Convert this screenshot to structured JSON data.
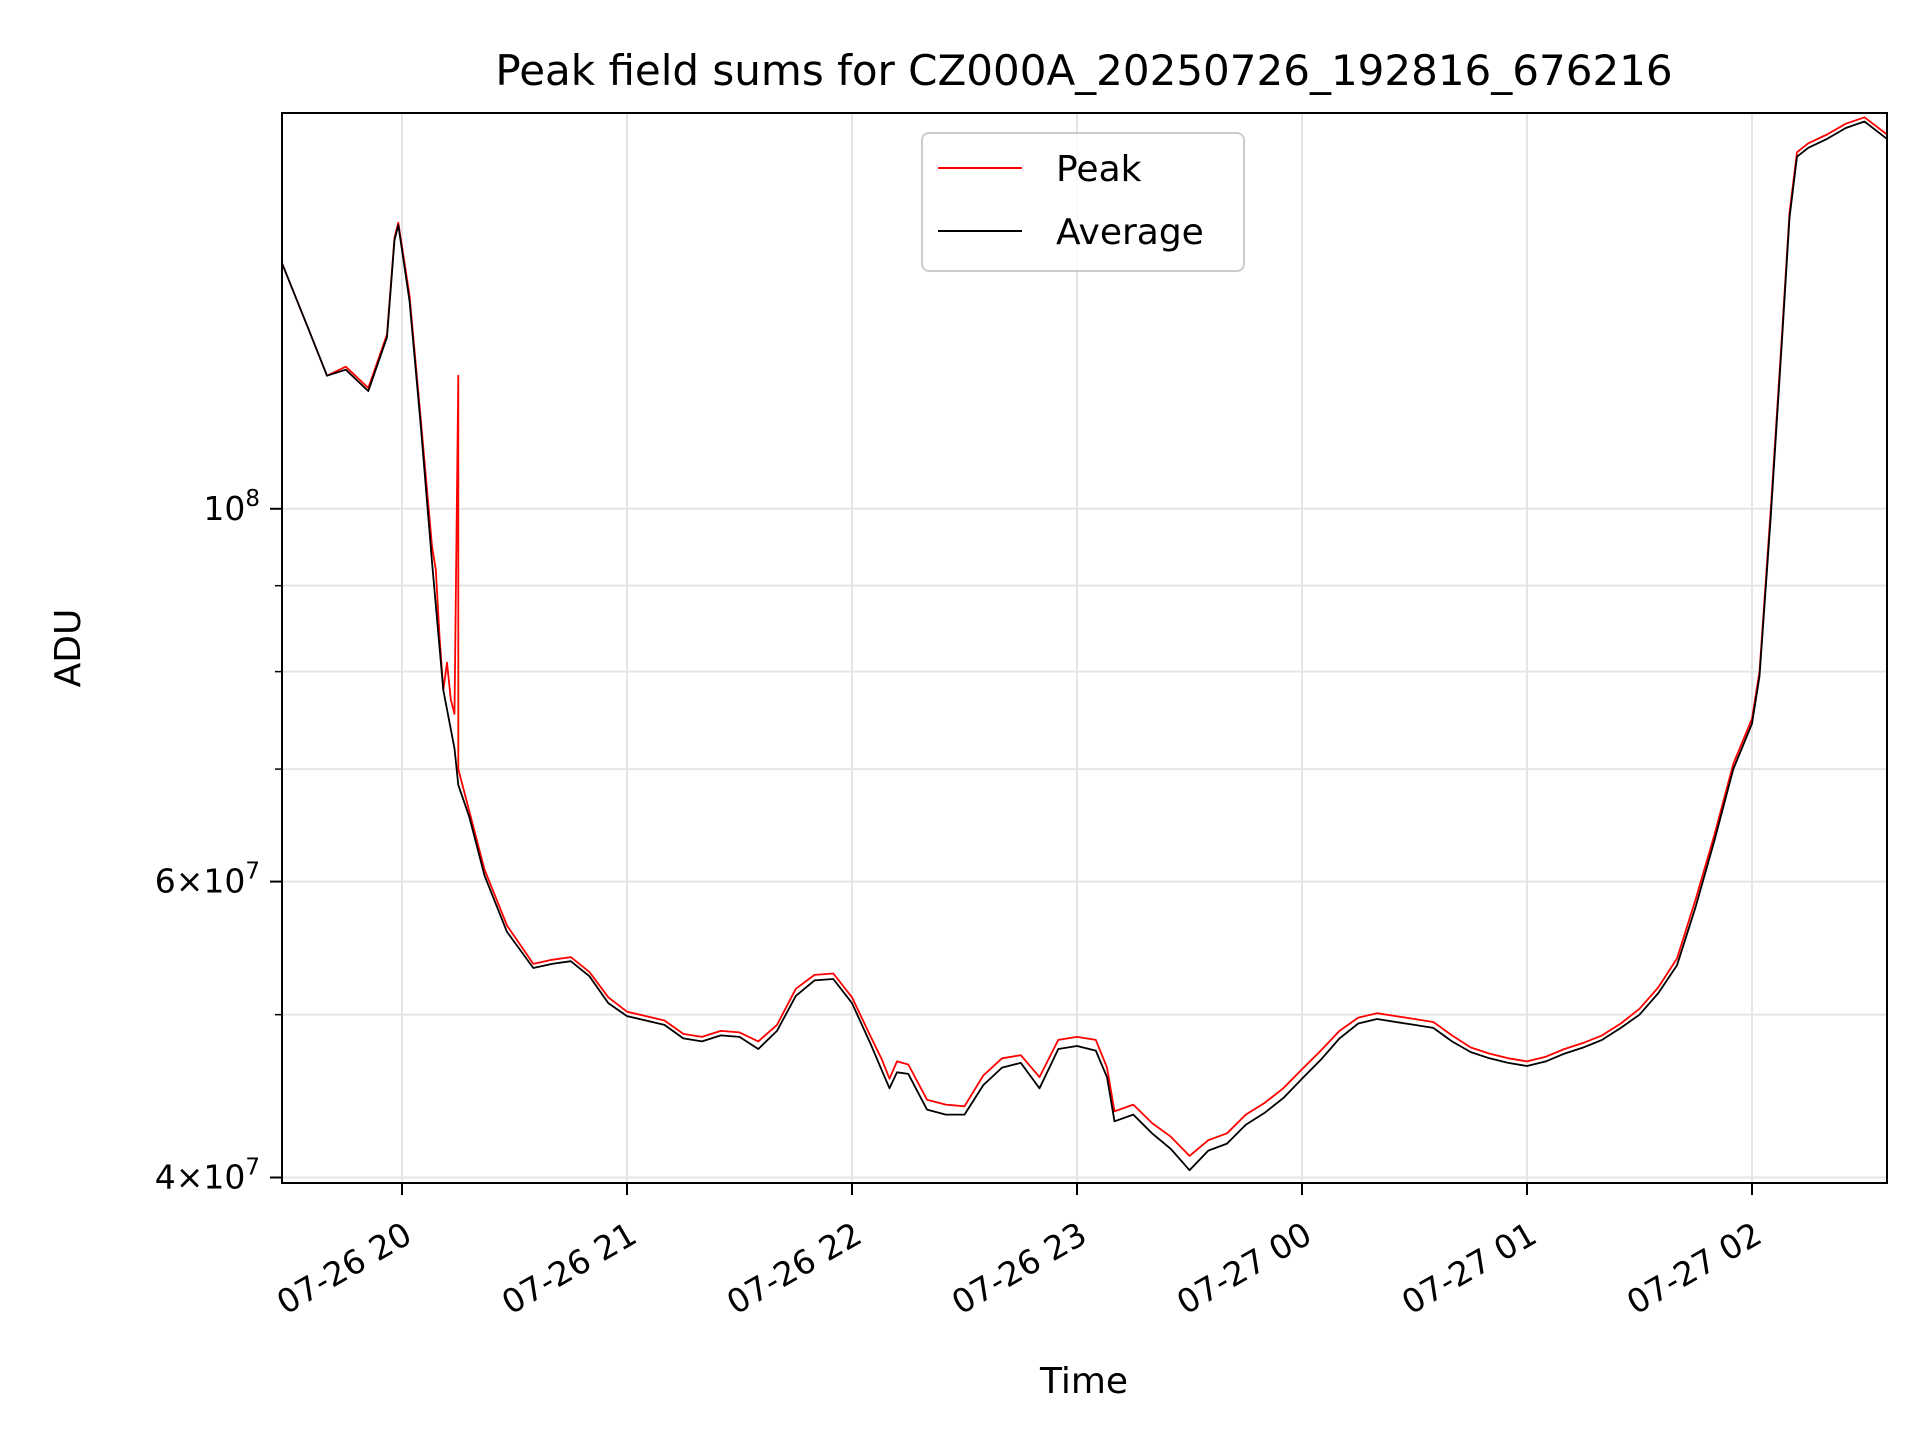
{
  "chart_data": {
    "type": "line",
    "title": "Peak field sums for CZ000A_20250726_192816_676216",
    "xlabel": "Time",
    "ylabel": "ADU",
    "yscale": "log",
    "ylim": [
      39700000,
      172000000
    ],
    "xlim": [
      "2025-07-26 19:28",
      "2025-07-27 02:36"
    ],
    "grid": true,
    "legend_position": "top-center",
    "x_ticks": [
      {
        "x": "2025-07-26 20:00",
        "label": "07-26 20"
      },
      {
        "x": "2025-07-26 21:00",
        "label": "07-26 21"
      },
      {
        "x": "2025-07-26 22:00",
        "label": "07-26 22"
      },
      {
        "x": "2025-07-26 23:00",
        "label": "07-26 23"
      },
      {
        "x": "2025-07-27 00:00",
        "label": "07-27 00"
      },
      {
        "x": "2025-07-27 01:00",
        "label": "07-27 01"
      },
      {
        "x": "2025-07-27 02:00",
        "label": "07-27 02"
      }
    ],
    "y_ticks": [
      {
        "value": 40000000,
        "mantissa": "4",
        "exponent": "7"
      },
      {
        "value": 60000000,
        "mantissa": "6",
        "exponent": "7"
      },
      {
        "value": 100000000,
        "mantissa": "",
        "exponent": "8"
      }
    ],
    "y_minor_ticks": [
      50000000,
      70000000,
      80000000,
      90000000
    ],
    "series": [
      {
        "name": "Peak",
        "color": "#ff0000",
        "points": [
          [
            "2025-07-26 19:28",
            140000000
          ],
          [
            "2025-07-26 19:35",
            128000000
          ],
          [
            "2025-07-26 19:40",
            120000000
          ],
          [
            "2025-07-26 19:45",
            121500000
          ],
          [
            "2025-07-26 19:51",
            118000000
          ],
          [
            "2025-07-26 19:56",
            127000000
          ],
          [
            "2025-07-26 19:58",
            145000000
          ],
          [
            "2025-07-26 19:59",
            148000000
          ],
          [
            "2025-07-26 20:02",
            134000000
          ],
          [
            "2025-07-26 20:05",
            113000000
          ],
          [
            "2025-07-26 20:08",
            95000000
          ],
          [
            "2025-07-26 20:09",
            92000000
          ],
          [
            "2025-07-26 20:10",
            84000000
          ],
          [
            "2025-07-26 20:11",
            78000000
          ],
          [
            "2025-07-26 20:12",
            81000000
          ],
          [
            "2025-07-26 20:13",
            77000000
          ],
          [
            "2025-07-26 20:14",
            75500000
          ],
          [
            "2025-07-26 20:15",
            120000000
          ],
          [
            "2025-07-26 20:15",
            70000000
          ],
          [
            "2025-07-26 20:18",
            66000000
          ],
          [
            "2025-07-26 20:22",
            61000000
          ],
          [
            "2025-07-26 20:28",
            56500000
          ],
          [
            "2025-07-26 20:35",
            53600000
          ],
          [
            "2025-07-26 20:40",
            53900000
          ],
          [
            "2025-07-26 20:45",
            54100000
          ],
          [
            "2025-07-26 20:50",
            53000000
          ],
          [
            "2025-07-26 20:55",
            51200000
          ],
          [
            "2025-07-26 21:00",
            50200000
          ],
          [
            "2025-07-26 21:10",
            49600000
          ],
          [
            "2025-07-26 21:15",
            48700000
          ],
          [
            "2025-07-26 21:20",
            48500000
          ],
          [
            "2025-07-26 21:25",
            48900000
          ],
          [
            "2025-07-26 21:30",
            48800000
          ],
          [
            "2025-07-26 21:35",
            48200000
          ],
          [
            "2025-07-26 21:40",
            49300000
          ],
          [
            "2025-07-26 21:45",
            51800000
          ],
          [
            "2025-07-26 21:50",
            52800000
          ],
          [
            "2025-07-26 21:55",
            52900000
          ],
          [
            "2025-07-26 22:00",
            51200000
          ],
          [
            "2025-07-26 22:05",
            48500000
          ],
          [
            "2025-07-26 22:08",
            47000000
          ],
          [
            "2025-07-26 22:10",
            45800000
          ],
          [
            "2025-07-26 22:12",
            46900000
          ],
          [
            "2025-07-26 22:15",
            46700000
          ],
          [
            "2025-07-26 22:20",
            44500000
          ],
          [
            "2025-07-26 22:25",
            44200000
          ],
          [
            "2025-07-26 22:30",
            44100000
          ],
          [
            "2025-07-26 22:35",
            46000000
          ],
          [
            "2025-07-26 22:40",
            47100000
          ],
          [
            "2025-07-26 22:45",
            47300000
          ],
          [
            "2025-07-26 22:50",
            45900000
          ],
          [
            "2025-07-26 22:55",
            48300000
          ],
          [
            "2025-07-26 23:00",
            48500000
          ],
          [
            "2025-07-26 23:05",
            48300000
          ],
          [
            "2025-07-26 23:08",
            46500000
          ],
          [
            "2025-07-26 23:10",
            43800000
          ],
          [
            "2025-07-26 23:15",
            44200000
          ],
          [
            "2025-07-26 23:20",
            43100000
          ],
          [
            "2025-07-26 23:25",
            42300000
          ],
          [
            "2025-07-26 23:30",
            41200000
          ],
          [
            "2025-07-26 23:35",
            42100000
          ],
          [
            "2025-07-26 23:40",
            42500000
          ],
          [
            "2025-07-26 23:45",
            43600000
          ],
          [
            "2025-07-26 23:50",
            44300000
          ],
          [
            "2025-07-26 23:55",
            45200000
          ],
          [
            "2025-07-27 00:00",
            46400000
          ],
          [
            "2025-07-27 00:05",
            47600000
          ],
          [
            "2025-07-27 00:10",
            48900000
          ],
          [
            "2025-07-27 00:15",
            49800000
          ],
          [
            "2025-07-27 00:20",
            50100000
          ],
          [
            "2025-07-27 00:25",
            49900000
          ],
          [
            "2025-07-27 00:30",
            49700000
          ],
          [
            "2025-07-27 00:35",
            49500000
          ],
          [
            "2025-07-27 00:40",
            48600000
          ],
          [
            "2025-07-27 00:45",
            47800000
          ],
          [
            "2025-07-27 00:50",
            47400000
          ],
          [
            "2025-07-27 00:55",
            47100000
          ],
          [
            "2025-07-27 01:00",
            46900000
          ],
          [
            "2025-07-27 01:05",
            47200000
          ],
          [
            "2025-07-27 01:10",
            47700000
          ],
          [
            "2025-07-27 01:15",
            48100000
          ],
          [
            "2025-07-27 01:20",
            48600000
          ],
          [
            "2025-07-27 01:25",
            49400000
          ],
          [
            "2025-07-27 01:30",
            50400000
          ],
          [
            "2025-07-27 01:35",
            51900000
          ],
          [
            "2025-07-27 01:40",
            54000000
          ],
          [
            "2025-07-27 01:45",
            58600000
          ],
          [
            "2025-07-27 01:50",
            64000000
          ],
          [
            "2025-07-27 01:55",
            70500000
          ],
          [
            "2025-07-27 02:00",
            75000000
          ],
          [
            "2025-07-27 02:02",
            80000000
          ],
          [
            "2025-07-27 02:05",
            100000000
          ],
          [
            "2025-07-27 02:08",
            127000000
          ],
          [
            "2025-07-27 02:10",
            150000000
          ],
          [
            "2025-07-27 02:12",
            163000000
          ],
          [
            "2025-07-27 02:15",
            165000000
          ],
          [
            "2025-07-27 02:20",
            167000000
          ],
          [
            "2025-07-27 02:25",
            169500000
          ],
          [
            "2025-07-27 02:30",
            171000000
          ],
          [
            "2025-07-27 02:36",
            167000000
          ]
        ]
      },
      {
        "name": "Average",
        "color": "#000000",
        "points": [
          [
            "2025-07-26 19:28",
            140000000
          ],
          [
            "2025-07-26 19:35",
            128000000
          ],
          [
            "2025-07-26 19:40",
            120000000
          ],
          [
            "2025-07-26 19:45",
            121000000
          ],
          [
            "2025-07-26 19:51",
            117500000
          ],
          [
            "2025-07-26 19:56",
            126500000
          ],
          [
            "2025-07-26 19:58",
            144500000
          ],
          [
            "2025-07-26 19:59",
            147500000
          ],
          [
            "2025-07-26 20:02",
            133000000
          ],
          [
            "2025-07-26 20:05",
            112000000
          ],
          [
            "2025-07-26 20:08",
            93000000
          ],
          [
            "2025-07-26 20:11",
            78000000
          ],
          [
            "2025-07-26 20:14",
            72000000
          ],
          [
            "2025-07-26 20:15",
            68500000
          ],
          [
            "2025-07-26 20:18",
            65500000
          ],
          [
            "2025-07-26 20:22",
            60500000
          ],
          [
            "2025-07-26 20:28",
            56000000
          ],
          [
            "2025-07-26 20:35",
            53300000
          ],
          [
            "2025-07-26 20:40",
            53600000
          ],
          [
            "2025-07-26 20:45",
            53800000
          ],
          [
            "2025-07-26 20:50",
            52700000
          ],
          [
            "2025-07-26 20:55",
            50800000
          ],
          [
            "2025-07-26 21:00",
            49900000
          ],
          [
            "2025-07-26 21:10",
            49300000
          ],
          [
            "2025-07-26 21:15",
            48400000
          ],
          [
            "2025-07-26 21:20",
            48200000
          ],
          [
            "2025-07-26 21:25",
            48600000
          ],
          [
            "2025-07-26 21:30",
            48500000
          ],
          [
            "2025-07-26 21:35",
            47700000
          ],
          [
            "2025-07-26 21:40",
            48900000
          ],
          [
            "2025-07-26 21:45",
            51300000
          ],
          [
            "2025-07-26 21:50",
            52400000
          ],
          [
            "2025-07-26 21:55",
            52500000
          ],
          [
            "2025-07-26 22:00",
            50800000
          ],
          [
            "2025-07-26 22:05",
            48000000
          ],
          [
            "2025-07-26 22:08",
            46300000
          ],
          [
            "2025-07-26 22:10",
            45200000
          ],
          [
            "2025-07-26 22:12",
            46200000
          ],
          [
            "2025-07-26 22:15",
            46100000
          ],
          [
            "2025-07-26 22:20",
            43900000
          ],
          [
            "2025-07-26 22:25",
            43600000
          ],
          [
            "2025-07-26 22:30",
            43600000
          ],
          [
            "2025-07-26 22:35",
            45400000
          ],
          [
            "2025-07-26 22:40",
            46500000
          ],
          [
            "2025-07-26 22:45",
            46800000
          ],
          [
            "2025-07-26 22:50",
            45200000
          ],
          [
            "2025-07-26 22:55",
            47700000
          ],
          [
            "2025-07-26 23:00",
            47900000
          ],
          [
            "2025-07-26 23:05",
            47600000
          ],
          [
            "2025-07-26 23:08",
            45900000
          ],
          [
            "2025-07-26 23:10",
            43200000
          ],
          [
            "2025-07-26 23:15",
            43600000
          ],
          [
            "2025-07-26 23:20",
            42500000
          ],
          [
            "2025-07-26 23:25",
            41600000
          ],
          [
            "2025-07-26 23:30",
            40400000
          ],
          [
            "2025-07-26 23:35",
            41500000
          ],
          [
            "2025-07-26 23:40",
            41900000
          ],
          [
            "2025-07-26 23:45",
            43000000
          ],
          [
            "2025-07-26 23:50",
            43700000
          ],
          [
            "2025-07-26 23:55",
            44600000
          ],
          [
            "2025-07-27 00:00",
            45800000
          ],
          [
            "2025-07-27 00:05",
            47000000
          ],
          [
            "2025-07-27 00:10",
            48400000
          ],
          [
            "2025-07-27 00:15",
            49400000
          ],
          [
            "2025-07-27 00:20",
            49700000
          ],
          [
            "2025-07-27 00:25",
            49500000
          ],
          [
            "2025-07-27 00:30",
            49300000
          ],
          [
            "2025-07-27 00:35",
            49100000
          ],
          [
            "2025-07-27 00:40",
            48200000
          ],
          [
            "2025-07-27 00:45",
            47500000
          ],
          [
            "2025-07-27 00:50",
            47100000
          ],
          [
            "2025-07-27 00:55",
            46800000
          ],
          [
            "2025-07-27 01:00",
            46600000
          ],
          [
            "2025-07-27 01:05",
            46900000
          ],
          [
            "2025-07-27 01:10",
            47400000
          ],
          [
            "2025-07-27 01:15",
            47800000
          ],
          [
            "2025-07-27 01:20",
            48300000
          ],
          [
            "2025-07-27 01:25",
            49100000
          ],
          [
            "2025-07-27 01:30",
            50000000
          ],
          [
            "2025-07-27 01:35",
            51500000
          ],
          [
            "2025-07-27 01:40",
            53500000
          ],
          [
            "2025-07-27 01:45",
            58000000
          ],
          [
            "2025-07-27 01:50",
            63500000
          ],
          [
            "2025-07-27 01:55",
            70000000
          ],
          [
            "2025-07-27 02:00",
            74500000
          ],
          [
            "2025-07-27 02:02",
            79500000
          ],
          [
            "2025-07-27 02:05",
            99000000
          ],
          [
            "2025-07-27 02:08",
            126000000
          ],
          [
            "2025-07-27 02:10",
            149000000
          ],
          [
            "2025-07-27 02:12",
            162000000
          ],
          [
            "2025-07-27 02:15",
            164000000
          ],
          [
            "2025-07-27 02:20",
            166000000
          ],
          [
            "2025-07-27 02:25",
            168500000
          ],
          [
            "2025-07-27 02:30",
            170000000
          ],
          [
            "2025-07-27 02:36",
            166000000
          ]
        ]
      }
    ]
  }
}
